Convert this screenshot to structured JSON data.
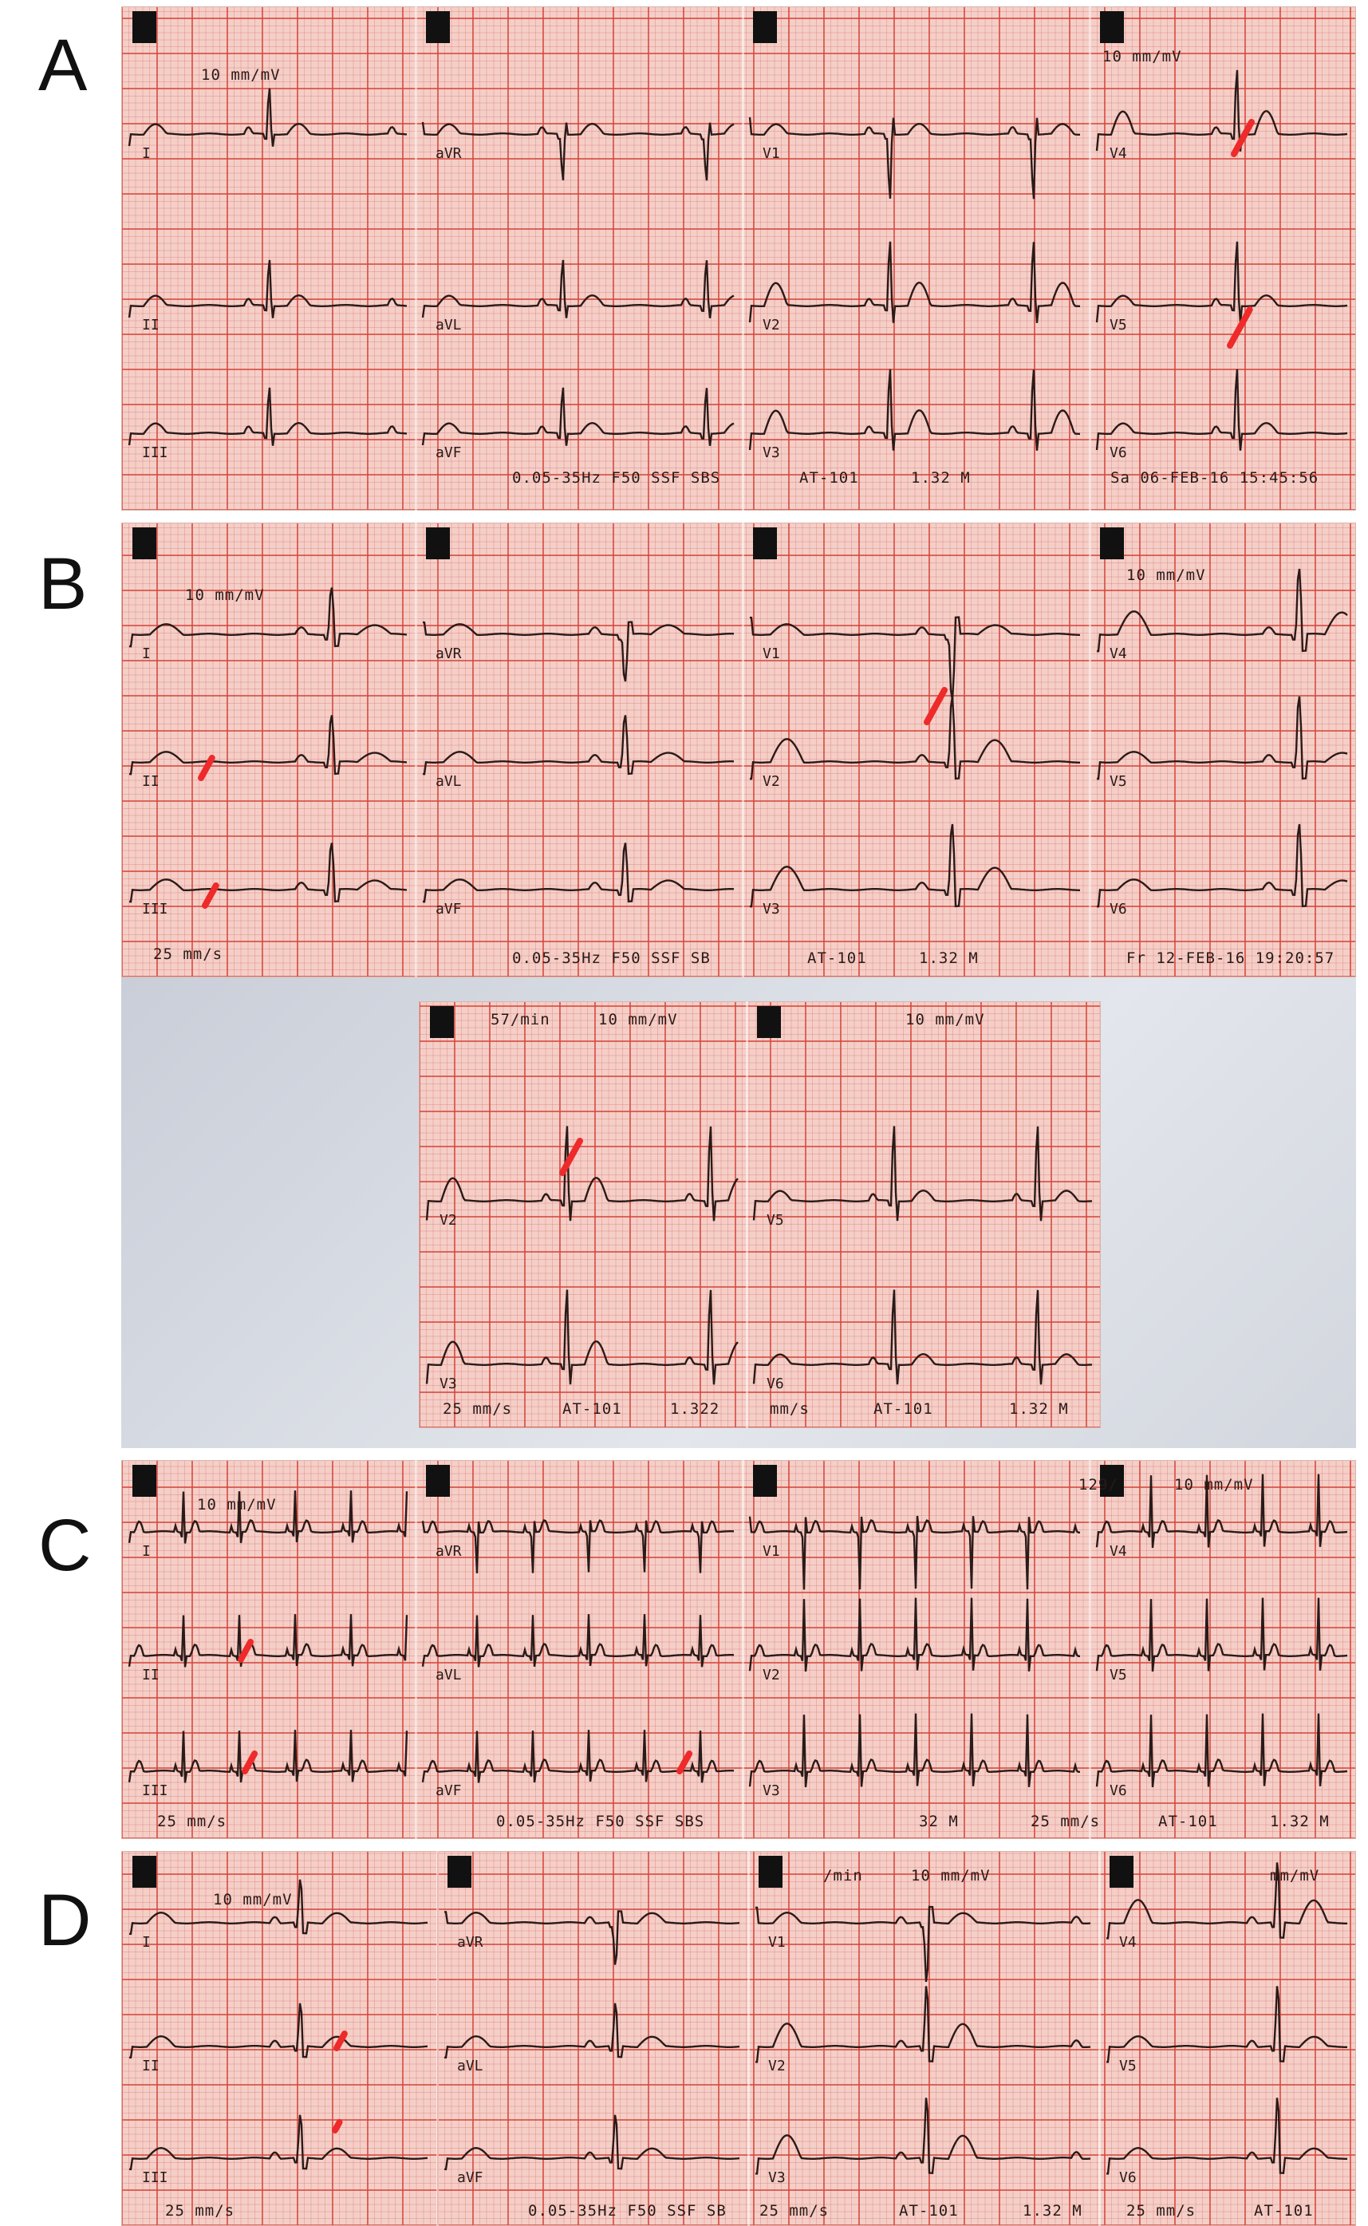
{
  "panels": {
    "A": {
      "label": "A",
      "texts": {
        "gain1": "10 mm/mV",
        "gain2": "10 mm/mV",
        "filter": "0.05-35Hz F50 SSF SBS",
        "device": "AT-101",
        "version": "1.32 M",
        "datetime": "Sa 06-FEB-16 15:45:56"
      }
    },
    "B": {
      "label": "B",
      "texts": {
        "gain1": "10 mm/mV",
        "gain2": "10 mm/mV",
        "speed": "25 mm/s",
        "filter": "0.05-35Hz F50 SSF SB",
        "device": "AT-101",
        "version": "1.32 M",
        "datetime": "Fr 12-FEB-16 19:20:57",
        "rate2": "57/min",
        "gain3": "10 mm/mV",
        "gain4": "10 mm/mV",
        "speed2": "25 mm/s",
        "device2": "AT-101",
        "version2": "1.322",
        "speed3": "mm/s",
        "device3": "AT-101",
        "version3": "1.32 M"
      }
    },
    "C": {
      "label": "C",
      "texts": {
        "gain1": "10 mm/mV",
        "rate": "129/",
        "gain2": "10 mm/mV",
        "speed": "25 mm/s",
        "filter": "0.05-35Hz F50 SSF SBS",
        "version": "32 M",
        "speed2": "25 mm/s",
        "device": "AT-101",
        "version2": "1.32 M"
      }
    },
    "D": {
      "label": "D",
      "texts": {
        "gain1": "10 mm/mV",
        "rate": "/min",
        "gain2": "10 mm/mV",
        "gain3": "mm/mV",
        "speed": "25 mm/s",
        "filter": "0.05-35Hz F50 SSF SB",
        "speed2": "25 mm/s",
        "device": "AT-101",
        "version": "1.32 M",
        "speed3": "25 mm/s",
        "device2": "AT-101"
      }
    }
  },
  "leads": [
    "I",
    "II",
    "III",
    "aVR",
    "aVL",
    "aVF",
    "V1",
    "V2",
    "V3",
    "V4",
    "V5",
    "V6"
  ],
  "colors": {
    "paper": "#f4cfc8",
    "grid": "#d6463c",
    "trace": "#2a1a18",
    "arrow": "#ee2a2a",
    "background": "#d2d6de"
  },
  "icons": {
    "arrow": "red-arrow-annotation",
    "marker": "black-calibration-marker"
  }
}
